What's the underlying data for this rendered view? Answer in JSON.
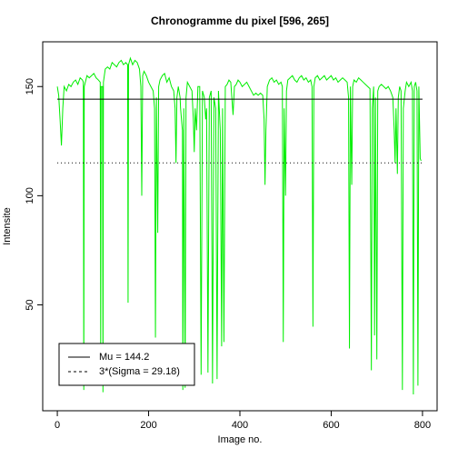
{
  "chart_data": {
    "type": "line",
    "title": "Chronogramme du pixel [596, 265]",
    "x_label": "Image no.",
    "y_label": "Intensite",
    "xlim": [
      -32,
      832
    ],
    "ylim": [
      1.5,
      170.5
    ],
    "xticks": [
      0,
      200,
      400,
      600,
      800
    ],
    "yticks": [
      50,
      100,
      150
    ],
    "grid": false,
    "legend_position": "bottom-left",
    "hlines": [
      {
        "name": "Mu = 144.2",
        "value": 144.2,
        "style": "solid",
        "color": "#000000"
      },
      {
        "name": "3*(Sigma = 29.18)",
        "value": 115.02,
        "style": "dotted",
        "color": "#000000"
      }
    ],
    "series": [
      {
        "color": "#00ee00",
        "x": [
          0,
          3,
          6,
          9,
          12,
          15,
          20,
          25,
          30,
          35,
          40,
          45,
          50,
          55,
          57,
          58,
          59,
          65,
          70,
          75,
          80,
          85,
          90,
          94,
          95,
          96,
          99,
          100,
          101,
          105,
          110,
          115,
          120,
          125,
          130,
          135,
          140,
          145,
          150,
          154,
          155,
          156,
          160,
          165,
          170,
          175,
          180,
          183,
          185,
          187,
          190,
          195,
          200,
          205,
          210,
          213,
          215,
          217,
          220,
          222,
          225,
          230,
          235,
          240,
          245,
          250,
          255,
          258,
          260,
          262,
          265,
          269,
          270,
          274,
          275,
          277,
          280,
          282,
          285,
          290,
          295,
          298,
          300,
          302,
          305,
          308,
          312,
          315,
          318,
          322,
          325,
          327,
          330,
          333,
          337,
          340,
          343,
          347,
          350,
          353,
          357,
          360,
          362,
          365,
          368,
          372,
          376,
          380,
          385,
          388,
          392,
          396,
          400,
          405,
          410,
          415,
          420,
          425,
          430,
          435,
          440,
          445,
          450,
          453,
          455,
          457,
          460,
          465,
          470,
          475,
          480,
          485,
          490,
          493,
          495,
          497,
          500,
          502,
          505,
          510,
          515,
          520,
          525,
          530,
          535,
          540,
          545,
          550,
          555,
          558,
          560,
          562,
          565,
          570,
          575,
          580,
          585,
          590,
          595,
          600,
          605,
          610,
          615,
          620,
          625,
          630,
          635,
          638,
          640,
          642,
          645,
          647,
          650,
          655,
          660,
          665,
          670,
          675,
          680,
          685,
          688,
          690,
          693,
          695,
          697,
          700,
          702,
          705,
          710,
          715,
          720,
          725,
          730,
          735,
          738,
          740,
          742,
          745,
          747,
          750,
          753,
          756,
          758,
          762,
          765,
          770,
          775,
          778,
          780,
          782,
          785,
          788,
          790,
          792,
          795,
          797
        ],
        "values": [
          150,
          146,
          135,
          123,
          140,
          150,
          148,
          151,
          150,
          152,
          153,
          151,
          154,
          153,
          152,
          11,
          150,
          155,
          154,
          155,
          156,
          154,
          153,
          152,
          30,
          150,
          150,
          10,
          152,
          158,
          159,
          158,
          161,
          160,
          159,
          161,
          162,
          160,
          161,
          160,
          51,
          160,
          163,
          160,
          162,
          161,
          158,
          150,
          100,
          155,
          157,
          155,
          152,
          150,
          148,
          140,
          35,
          145,
          83,
          150,
          153,
          155,
          156,
          152,
          154,
          150,
          148,
          140,
          115,
          145,
          150,
          145,
          140,
          130,
          11,
          140,
          12,
          145,
          152,
          150,
          148,
          135,
          120,
          140,
          130,
          150,
          150,
          18,
          148,
          145,
          135,
          140,
          19,
          145,
          148,
          14,
          145,
          140,
          16,
          148,
          130,
          31,
          140,
          33,
          150,
          151,
          153,
          152,
          137,
          150,
          151,
          153,
          152,
          150,
          151,
          152,
          150,
          148,
          146,
          147,
          146,
          147,
          146,
          135,
          105,
          130,
          150,
          153,
          154,
          152,
          153,
          151,
          152,
          150,
          33,
          140,
          100,
          148,
          153,
          154,
          155,
          153,
          152,
          154,
          155,
          153,
          154,
          152,
          153,
          150,
          40,
          150,
          154,
          155,
          153,
          154,
          155,
          153,
          154,
          155,
          153,
          154,
          152,
          153,
          154,
          153,
          152,
          145,
          30,
          150,
          105,
          150,
          153,
          152,
          154,
          153,
          152,
          151,
          150,
          149,
          20,
          140,
          150,
          36,
          145,
          25,
          148,
          150,
          151,
          150,
          149,
          150,
          148,
          145,
          130,
          115,
          140,
          110,
          145,
          150,
          148,
          11,
          140,
          148,
          152,
          150,
          152,
          148,
          9,
          150,
          152,
          148,
          13,
          150,
          117,
          116
        ]
      }
    ]
  }
}
